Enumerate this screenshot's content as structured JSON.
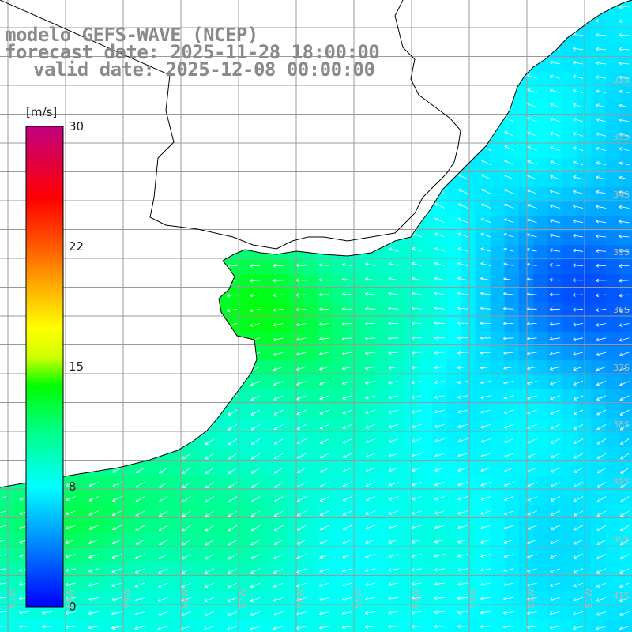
{
  "title": {
    "line1": "modelo GEFS-WAVE (NCEP)",
    "line2": "forecast date: 2025-11-28 18:00:00",
    "line3": "valid date: 2025-12-08 00:00:00"
  },
  "colorbar": {
    "unit": "[m/s]",
    "min": 0,
    "max": 30,
    "ticks": [
      {
        "label": "30",
        "value": 30
      },
      {
        "label": "22",
        "value": 22.5
      },
      {
        "label": "15",
        "value": 15
      },
      {
        "label": "8",
        "value": 7.5
      },
      {
        "label": "0",
        "value": 0
      }
    ],
    "colors": [
      "#0000ff",
      "#00c8ff",
      "#00ffff",
      "#00ff00",
      "#ffff00",
      "#ff8000",
      "#ff0000",
      "#c80080"
    ]
  },
  "colors": {
    "land": "#ffffff",
    "grid": "#9a9a9a",
    "coast": "#000000",
    "arrow": "#ffffff"
  },
  "lat_labels": [
    "32S",
    "33S",
    "34S",
    "35S",
    "36S",
    "37S",
    "38S",
    "39S",
    "40S",
    "41S"
  ],
  "lon_labels": [
    "61W",
    "60W",
    "59W",
    "58W",
    "57W",
    "56W",
    "55W",
    "54W",
    "53W",
    "52W",
    "51W"
  ]
}
